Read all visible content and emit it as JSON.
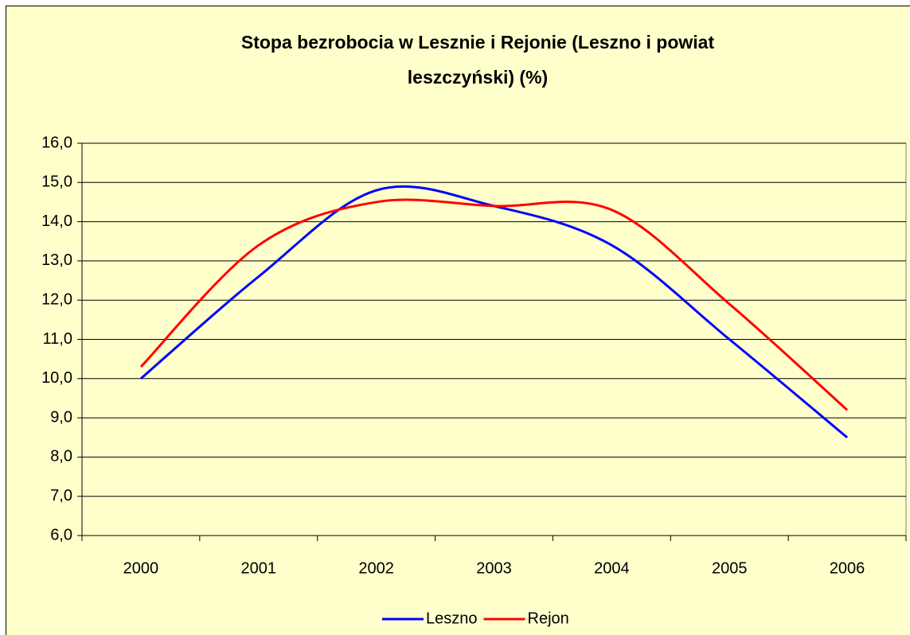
{
  "chart_data": {
    "type": "line",
    "title": [
      "Stopa bezrobocia w Lesznie i Rejonie (Leszno i powiat",
      "leszczyński) (%)"
    ],
    "categories": [
      "2000",
      "2001",
      "2002",
      "2003",
      "2004",
      "2005",
      "2006"
    ],
    "series": [
      {
        "name": "Leszno",
        "color": "#0000ff",
        "values": [
          10.0,
          12.6,
          14.8,
          14.4,
          13.4,
          11.0,
          8.5
        ]
      },
      {
        "name": "Rejon",
        "color": "#ff0000",
        "values": [
          10.3,
          13.4,
          14.5,
          14.4,
          14.3,
          11.9,
          9.2
        ]
      }
    ],
    "ylim": [
      6,
      16
    ],
    "yticks": [
      {
        "value": 6,
        "label": "6,0"
      },
      {
        "value": 7,
        "label": "7,0"
      },
      {
        "value": 8,
        "label": "8,0"
      },
      {
        "value": 9,
        "label": "9,0"
      },
      {
        "value": 10,
        "label": "10,0"
      },
      {
        "value": 11,
        "label": "11,0"
      },
      {
        "value": 12,
        "label": "12,0"
      },
      {
        "value": 13,
        "label": "13,0"
      },
      {
        "value": 14,
        "label": "14,0"
      },
      {
        "value": 15,
        "label": "15,0"
      },
      {
        "value": 16,
        "label": "16,0"
      }
    ],
    "grid": true,
    "smooth": true,
    "legend": "bottom"
  }
}
